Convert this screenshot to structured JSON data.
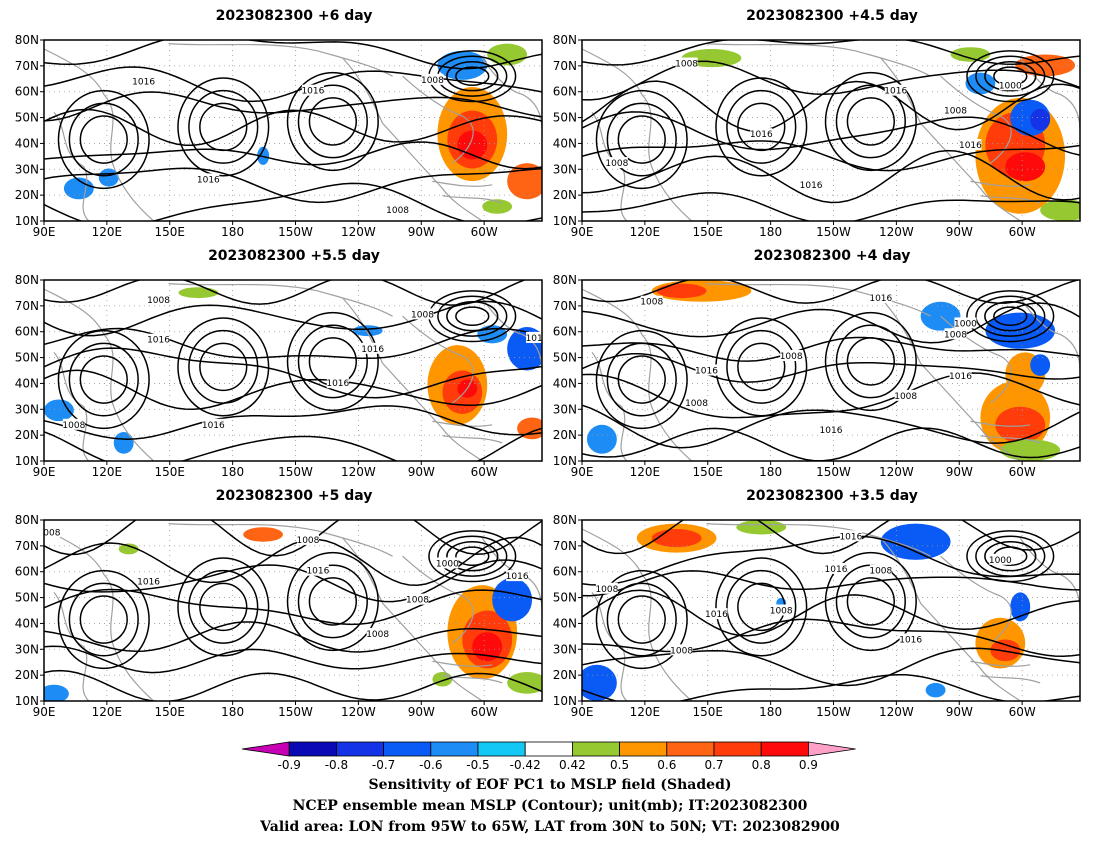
{
  "chart_data": {
    "type": "heatmap",
    "panels": [
      {
        "title": "2023082300 +6  day"
      },
      {
        "title": "2023082300 +4.5  day"
      },
      {
        "title": "2023082300 +5.5  day"
      },
      {
        "title": "2023082300 +4  day"
      },
      {
        "title": "2023082300 +5  day"
      },
      {
        "title": "2023082300 +3.5  day"
      }
    ],
    "x_ticks": [
      "90E",
      "120E",
      "150E",
      "180",
      "150W",
      "120W",
      "90W",
      "60W"
    ],
    "y_ticks": [
      "80N",
      "70N",
      "60N",
      "50N",
      "40N",
      "30N",
      "20N",
      "10N"
    ],
    "contour_labels": [
      "1016",
      "1008",
      "1000"
    ],
    "colorbar": {
      "ticks": [
        "-0.9",
        "-0.8",
        "-0.7",
        "-0.6",
        "-0.5",
        "-0.42",
        "0.42",
        "0.5",
        "0.6",
        "0.7",
        "0.8",
        "0.9"
      ],
      "colors": [
        "#c800b4",
        "#0a0ab4",
        "#1432e6",
        "#0a5af5",
        "#1e8cf5",
        "#14c8f5",
        "#ffffff",
        "#96c832",
        "#ff9600",
        "#ff6414",
        "#ff3c0a",
        "#ff0a0a",
        "#ffa0c8"
      ]
    },
    "caption": [
      "Sensitivity of EOF PC1 to MSLP field (Shaded)",
      "NCEP ensemble mean MSLP (Contour); unit(mb); IT:2023082300",
      "Valid area: LON from 95W to 65W, LAT from 30N to 50N; VT: 2023082900"
    ]
  }
}
